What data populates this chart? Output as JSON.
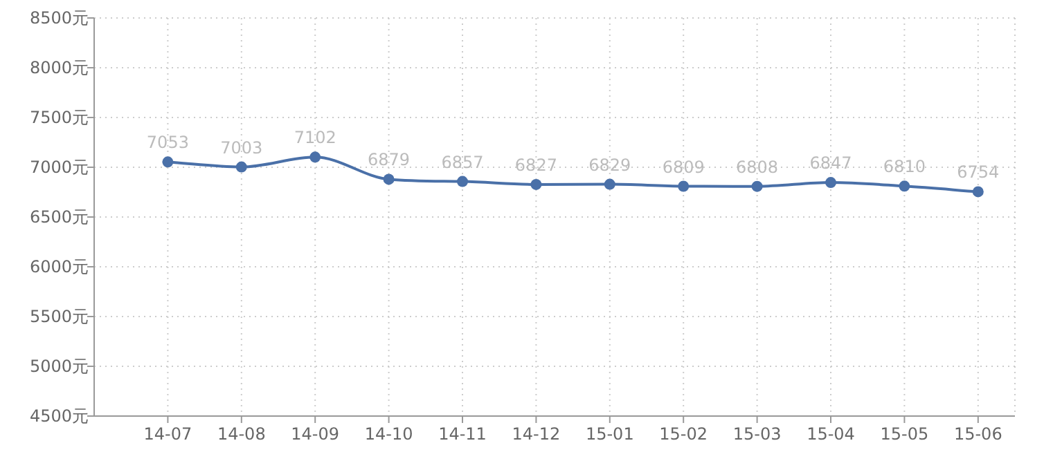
{
  "chart_data": {
    "type": "line",
    "categories": [
      "14-07",
      "14-08",
      "14-09",
      "14-10",
      "14-11",
      "14-12",
      "15-01",
      "15-02",
      "15-03",
      "15-04",
      "15-05",
      "15-06"
    ],
    "series": [
      {
        "color": "#4a70a8",
        "values": [
          7053,
          7003,
          7102,
          6879,
          6857,
          6827,
          6829,
          6809,
          6808,
          6847,
          6810,
          6754
        ]
      }
    ],
    "ylim": [
      4500,
      8500
    ],
    "yticks": [
      {
        "value": 4500,
        "label": "4500元"
      },
      {
        "value": 5000,
        "label": "5000元"
      },
      {
        "value": 5500,
        "label": "5500元"
      },
      {
        "value": 6000,
        "label": "6000元"
      },
      {
        "value": 6500,
        "label": "6500元"
      },
      {
        "value": 7000,
        "label": "7000元"
      },
      {
        "value": 7500,
        "label": "7500元"
      },
      {
        "value": 8000,
        "label": "8000元"
      },
      {
        "value": 8500,
        "label": "8500元"
      }
    ],
    "grid": true,
    "marker": "circle",
    "data_labels": true
  }
}
